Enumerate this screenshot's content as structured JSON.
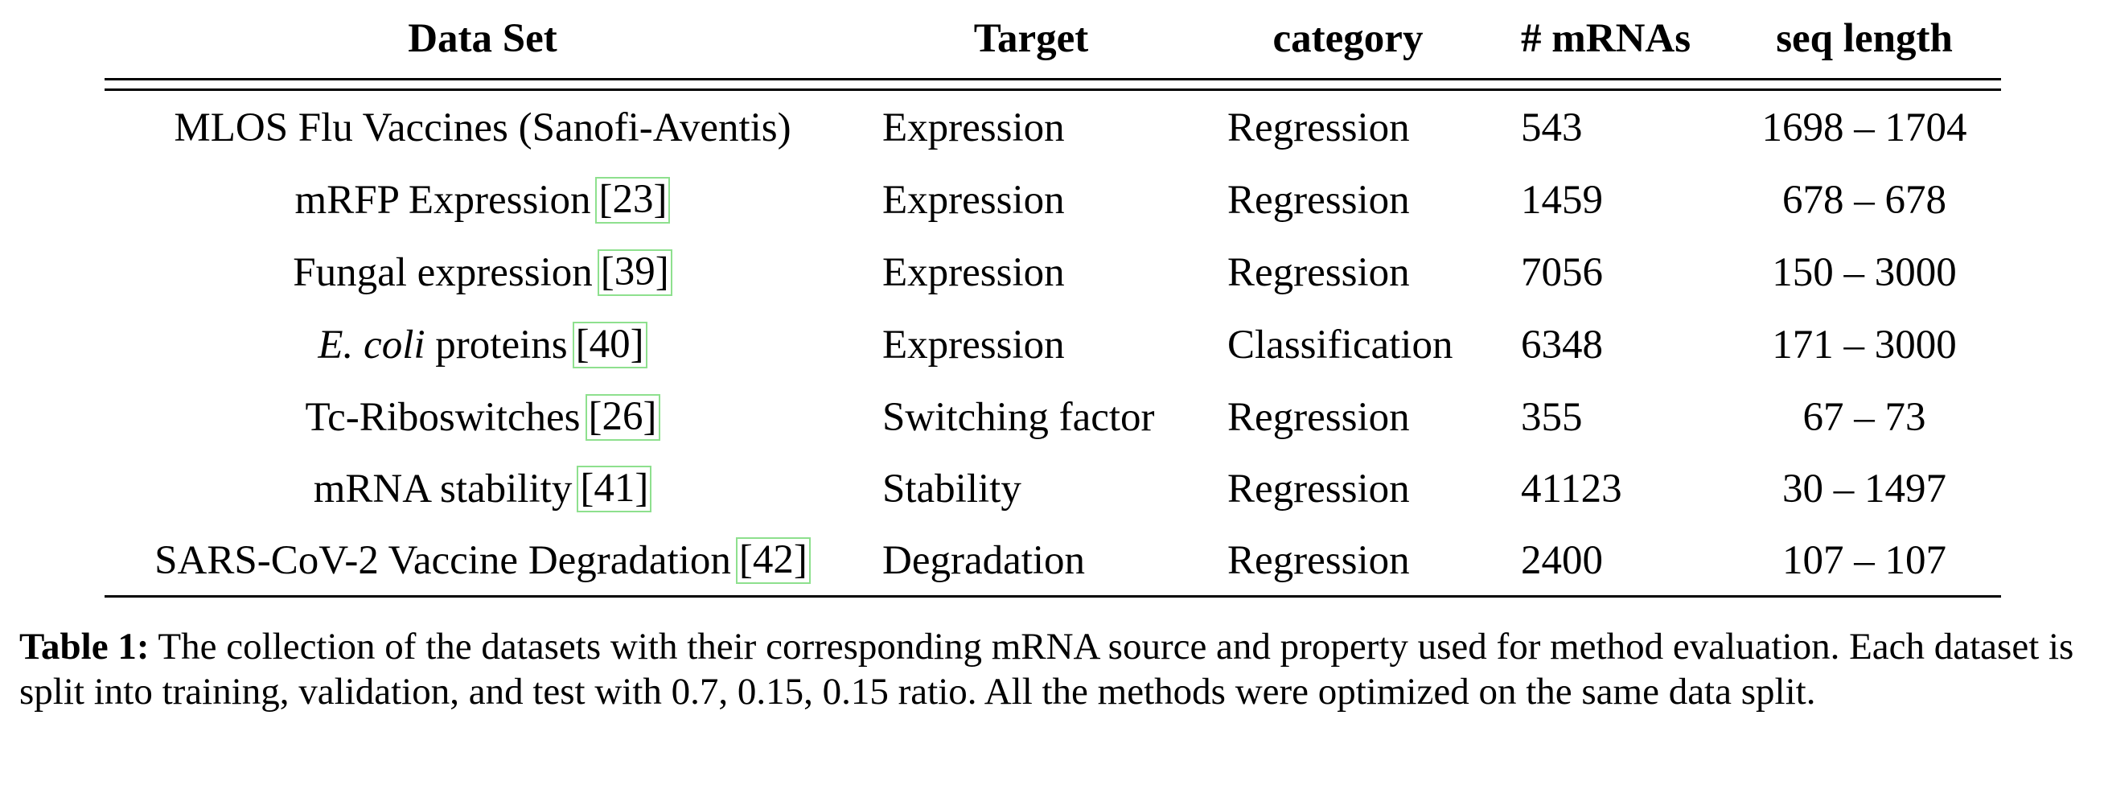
{
  "table": {
    "headers": [
      "Data Set",
      "Target",
      "category",
      "# mRNAs",
      "seq length"
    ],
    "rows": [
      {
        "dataset": "MLOS Flu Vaccines (Sanofi-Aventis)",
        "dataset_italic": "",
        "ref": "",
        "target": "Expression",
        "category": "Regression",
        "mrnas": "543",
        "seq_length": "1698 – 1704"
      },
      {
        "dataset": "mRFP Expression",
        "dataset_italic": "",
        "ref": "23",
        "target": "Expression",
        "category": "Regression",
        "mrnas": "1459",
        "seq_length": "678 – 678"
      },
      {
        "dataset": "Fungal expression",
        "dataset_italic": "",
        "ref": "39",
        "target": "Expression",
        "category": "Regression",
        "mrnas": "7056",
        "seq_length": "150 – 3000"
      },
      {
        "dataset": "proteins",
        "dataset_italic": "E. coli",
        "ref": "40",
        "target": "Expression",
        "category": "Classification",
        "mrnas": "6348",
        "seq_length": "171 – 3000"
      },
      {
        "dataset": "Tc-Riboswitches",
        "dataset_italic": "",
        "ref": "26",
        "target": "Switching factor",
        "category": "Regression",
        "mrnas": "355",
        "seq_length": "67 – 73"
      },
      {
        "dataset": "mRNA stability",
        "dataset_italic": "",
        "ref": "41",
        "target": "Stability",
        "category": "Regression",
        "mrnas": "41123",
        "seq_length": "30 – 1497"
      },
      {
        "dataset": "SARS-CoV-2 Vaccine Degradation",
        "dataset_italic": "",
        "ref": "42",
        "target": "Degradation",
        "category": "Regression",
        "mrnas": "2400",
        "seq_length": "107 – 107"
      }
    ]
  },
  "caption": {
    "label": "Table 1:",
    "text": "The collection of the datasets with their corresponding mRNA source and property used for method evaluation. Each dataset is split into training, validation, and test with 0.7, 0.15, 0.15 ratio. All the methods were optimized on the same data split."
  }
}
